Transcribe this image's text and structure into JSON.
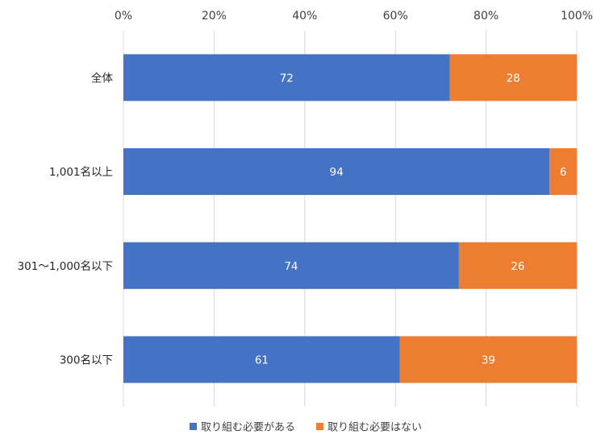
{
  "chart_data": {
    "type": "bar",
    "orientation": "horizontal",
    "stacked": "percent",
    "categories": [
      "全体",
      "1,001名以上",
      "301～1,000名以下",
      "300名以下"
    ],
    "series": [
      {
        "name": "取り組む必要がある",
        "values": [
          72,
          94,
          74,
          61
        ],
        "color": "#4472C4"
      },
      {
        "name": "取り組む必要はない",
        "values": [
          28,
          6,
          26,
          39
        ],
        "color": "#ED7D31"
      }
    ],
    "xlim": [
      0,
      100
    ],
    "xticks": [
      "0%",
      "20%",
      "40%",
      "60%",
      "80%",
      "100%"
    ],
    "x_axis_position": "top",
    "grid": true,
    "legend": "bottom"
  }
}
